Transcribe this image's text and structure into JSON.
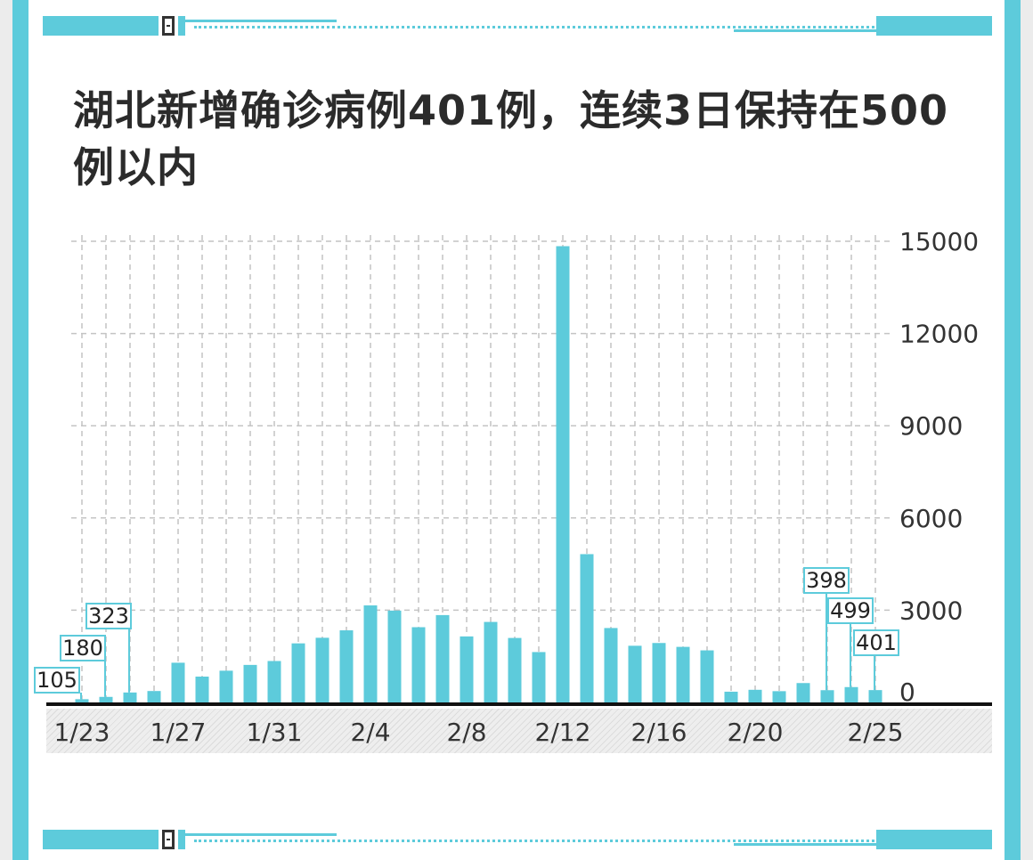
{
  "title": "湖北新增确诊病例401例，连续3日保持在500例以内",
  "colors": {
    "accent": "#5dcbdb",
    "axis": "#111111",
    "grid": "#bbbbbb"
  },
  "chart_data": {
    "type": "bar",
    "title": "湖北新增确诊病例401例，连续3日保持在500例以内",
    "xlabel": "",
    "ylabel": "",
    "ylim": [
      0,
      15000
    ],
    "yticks": [
      0,
      3000,
      6000,
      9000,
      12000,
      15000
    ],
    "grid": true,
    "y_axis_side": "right",
    "categories": [
      "1/23",
      "1/24",
      "1/25",
      "1/26",
      "1/27",
      "1/28",
      "1/29",
      "1/30",
      "1/31",
      "2/1",
      "2/2",
      "2/3",
      "2/4",
      "2/5",
      "2/6",
      "2/7",
      "2/8",
      "2/9",
      "2/10",
      "2/11",
      "2/12",
      "2/13",
      "2/14",
      "2/15",
      "2/16",
      "2/17",
      "2/18",
      "2/19",
      "2/20",
      "2/21",
      "2/22",
      "2/23",
      "2/24",
      "2/25"
    ],
    "x_tick_labels": [
      "1/23",
      "1/27",
      "1/31",
      "2/4",
      "2/8",
      "2/12",
      "2/16",
      "2/20",
      "2/25"
    ],
    "values": [
      105,
      180,
      323,
      371,
      1291,
      840,
      1032,
      1220,
      1347,
      1921,
      2103,
      2345,
      3156,
      2987,
      2447,
      2841,
      2147,
      2618,
      2097,
      1638,
      14840,
      4823,
      2420,
      1843,
      1933,
      1807,
      1693,
      349,
      411,
      366,
      630,
      398,
      499,
      401
    ],
    "data_labels": [
      {
        "category": "1/23",
        "value": "105"
      },
      {
        "category": "1/24",
        "value": "180"
      },
      {
        "category": "1/25",
        "value": "323"
      },
      {
        "category": "2/23",
        "value": "398"
      },
      {
        "category": "2/24",
        "value": "499"
      },
      {
        "category": "2/25",
        "value": "401"
      }
    ]
  }
}
